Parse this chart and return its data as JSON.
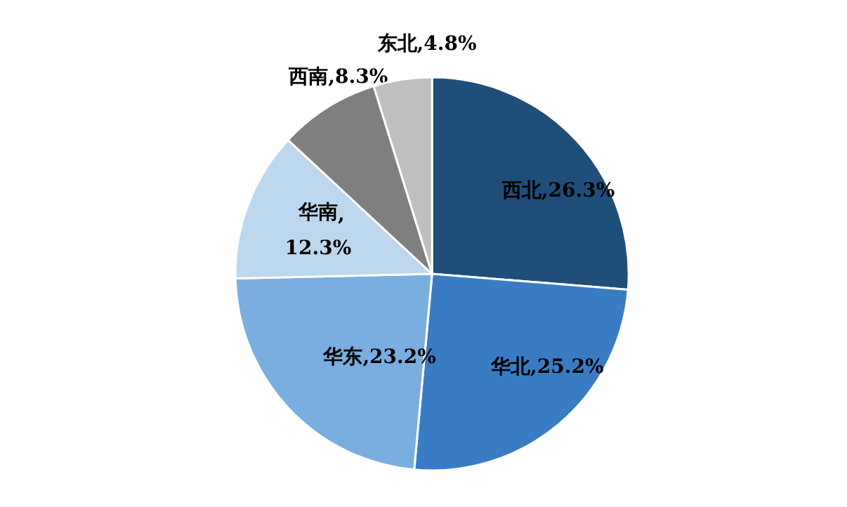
{
  "chart_data": {
    "type": "pie",
    "categories": [
      "西北",
      "华北",
      "华东",
      "华南",
      "西南",
      "东北"
    ],
    "values": [
      26.3,
      25.2,
      23.2,
      12.3,
      8.3,
      4.8
    ],
    "colors": [
      "#1f4e79",
      "#3a7cc4",
      "#7aaee0",
      "#bdd7ee",
      "#7f7f7f",
      "#bfbfbf"
    ],
    "value_labels": [
      ",26.3%",
      ",25.2%",
      ",23.2%",
      ",\n12.3%",
      ",8.3%",
      ",4.8%"
    ],
    "legend": false
  }
}
